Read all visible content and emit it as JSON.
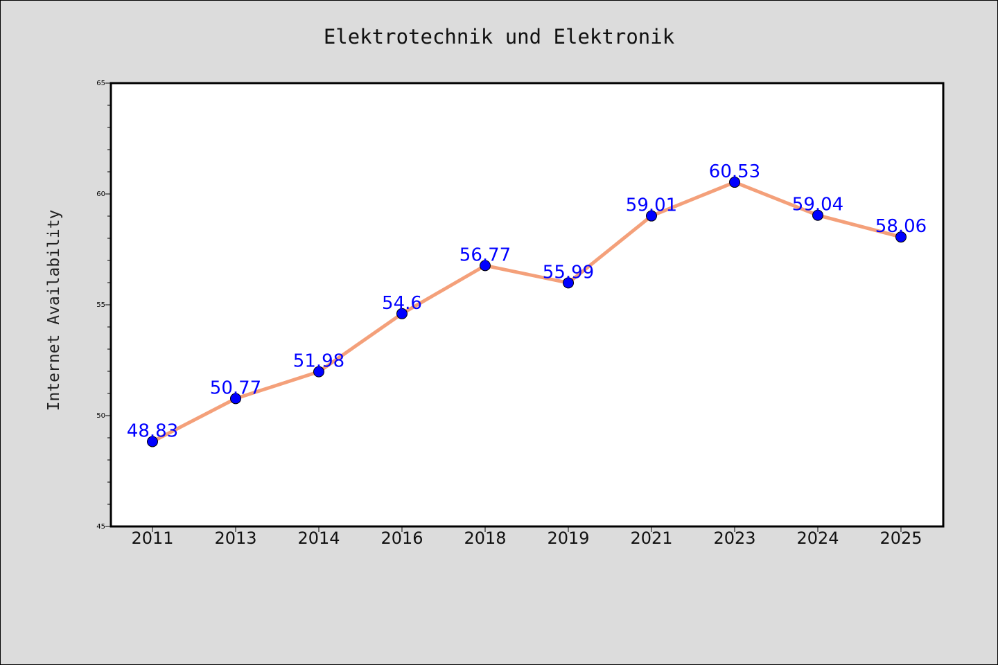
{
  "chart_data": {
    "type": "line",
    "title": "Elektrotechnik und Elektronik",
    "xlabel": "",
    "ylabel": "Internet Availability",
    "categories": [
      "2011",
      "2013",
      "2014",
      "2016",
      "2018",
      "2019",
      "2021",
      "2023",
      "2024",
      "2025"
    ],
    "series": [
      {
        "values": [
          48.83,
          50.77,
          51.98,
          54.6,
          56.77,
          55.99,
          59.01,
          60.53,
          59.04,
          58.06
        ],
        "labels": [
          "48.83",
          "50.77",
          "51.98",
          "54.6",
          "56.77",
          "55.99",
          "59.01",
          "60.53",
          "59.04",
          "58.06"
        ],
        "line_color": "#f4a07a",
        "marker_color": "#0000ff"
      }
    ],
    "ylim": [
      45,
      65
    ],
    "yticks": [
      "45",
      "50",
      "55",
      "60",
      "65"
    ],
    "grid": false,
    "legend": "none"
  }
}
